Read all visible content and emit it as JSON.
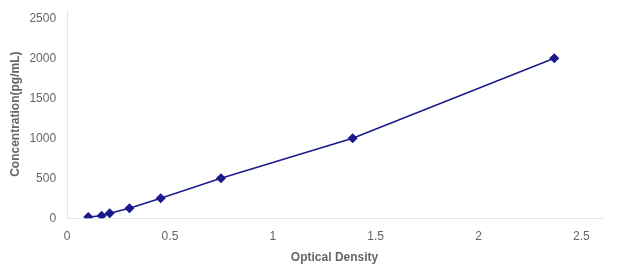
{
  "chart_data": {
    "type": "line",
    "x": [
      0.103,
      0.168,
      0.207,
      0.303,
      0.455,
      0.748,
      1.388,
      2.368
    ],
    "values": [
      15.625,
      31.25,
      62.5,
      125.0,
      250.0,
      500.0,
      1000.0,
      2000.0
    ],
    "color": "#1a1a8c",
    "marker": "diamond",
    "line_style": "solid",
    "xlabel": "Optical Density",
    "ylabel": "Concentration(pg/mL)",
    "xlim": [
      0.0,
      2.6
    ],
    "ylim": [
      0,
      2600
    ],
    "xticks": [
      0,
      0.5,
      1,
      1.5,
      2,
      2.5
    ],
    "yticks": [
      0,
      500,
      1000,
      1500,
      2000,
      2500
    ],
    "grid": false
  }
}
